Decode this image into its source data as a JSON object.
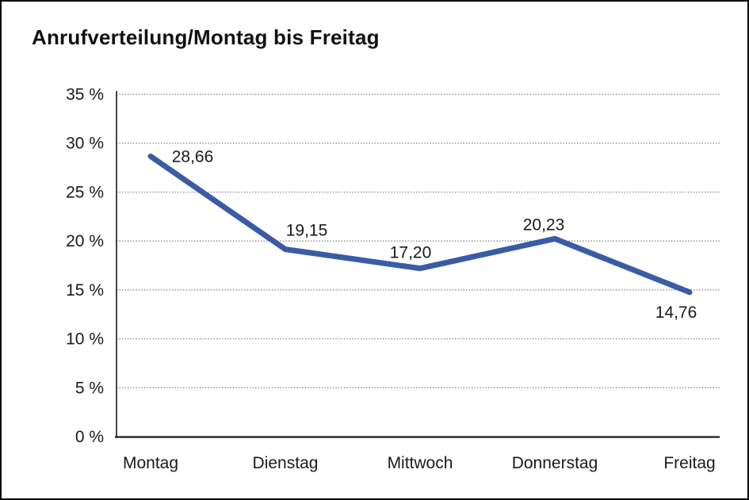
{
  "page": {
    "title": "Anrufverteilung/Montag bis Freitag"
  },
  "chart_data": {
    "type": "line",
    "title": "Anrufverteilung/Montag bis Freitag",
    "categories": [
      "Montag",
      "Dienstag",
      "Mittwoch",
      "Donnerstag",
      "Freitag"
    ],
    "values": [
      28.66,
      19.15,
      17.2,
      20.23,
      14.76
    ],
    "point_labels": [
      "28,66",
      "19,15",
      "17,20",
      "20,23",
      "14,76"
    ],
    "y_tick_labels": [
      "0 %",
      "5 %",
      "10 %",
      "15 %",
      "20 %",
      "25 %",
      "30 %",
      "35 %"
    ],
    "y_tick_values": [
      0,
      5,
      10,
      15,
      20,
      25,
      30,
      35
    ],
    "ylim": [
      0,
      35
    ],
    "y_step": 5,
    "xlabel": "",
    "ylabel": "",
    "legend": "none",
    "grid": "horizontal-dotted",
    "colors": {
      "line": "#3A5BA5",
      "axis": "#1a1a1a",
      "grid": "#6e6e6e",
      "text": "#1a1a1a"
    }
  }
}
